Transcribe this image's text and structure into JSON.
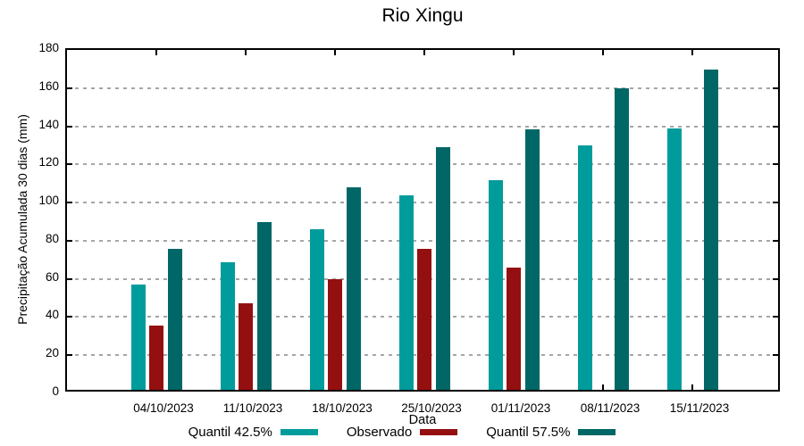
{
  "chart_data": {
    "type": "bar",
    "title": "Rio Xingu",
    "xlabel": "Data",
    "ylabel": "Precipitação Acumulada 30 dias (mm)",
    "ylim": [
      0,
      180
    ],
    "ytick_step": 20,
    "grid": true,
    "legend_position": "bottom",
    "axis_color": "#000000",
    "grid_color": "#a6a6a6",
    "categories": [
      "04/10/2023",
      "11/10/2023",
      "18/10/2023",
      "25/10/2023",
      "01/11/2023",
      "08/11/2023",
      "15/11/2023"
    ],
    "series": [
      {
        "name": "Quantil 42.5%",
        "color": "#009c9c",
        "values": [
          55,
          67,
          84,
          102,
          110,
          128,
          137
        ]
      },
      {
        "name": "Observado",
        "color": "#941010",
        "values": [
          33.5,
          45.5,
          58,
          74,
          64,
          null,
          null
        ]
      },
      {
        "name": "Quantil 57.5%",
        "color": "#006666",
        "values": [
          74,
          88,
          106,
          127,
          136.5,
          158,
          168
        ]
      }
    ]
  }
}
